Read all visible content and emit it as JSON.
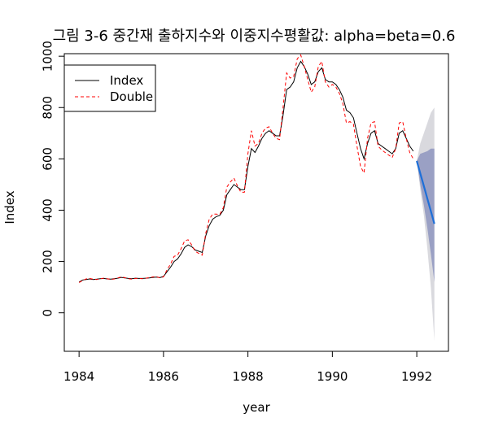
{
  "chart_data": {
    "type": "line",
    "title": "그림 3-6 중간재 출하지수와 이중지수평활값: alpha=beta=0.6",
    "xlabel": "year",
    "ylabel": "Index",
    "xlim": [
      1983.65,
      1992.75
    ],
    "ylim": [
      -150,
      1010
    ],
    "xticks": [
      1984,
      1986,
      1988,
      1990,
      1992
    ],
    "yticks": [
      0,
      200,
      400,
      600,
      800,
      1000
    ],
    "legend": {
      "position": "top-left",
      "entries": [
        "Index",
        "Double"
      ]
    },
    "colors": {
      "index": "#000000",
      "double": "#ff0000",
      "forecast": "#1e6fd8",
      "band80": "#9aa0c4",
      "band95": "#d9d9de"
    },
    "series": [
      {
        "name": "Index",
        "style": "solid",
        "x": [
          1984.0,
          1984.083,
          1984.167,
          1984.25,
          1984.333,
          1984.417,
          1984.5,
          1984.583,
          1984.667,
          1984.75,
          1984.833,
          1984.917,
          1985.0,
          1985.083,
          1985.167,
          1985.25,
          1985.333,
          1985.417,
          1985.5,
          1985.583,
          1985.667,
          1985.75,
          1985.833,
          1985.917,
          1986.0,
          1986.083,
          1986.167,
          1986.25,
          1986.333,
          1986.417,
          1986.5,
          1986.583,
          1986.667,
          1986.75,
          1986.833,
          1986.917,
          1987.0,
          1987.083,
          1987.167,
          1987.25,
          1987.333,
          1987.417,
          1987.5,
          1987.583,
          1987.667,
          1987.75,
          1987.833,
          1987.917,
          1988.0,
          1988.083,
          1988.167,
          1988.25,
          1988.333,
          1988.417,
          1988.5,
          1988.583,
          1988.667,
          1988.75,
          1988.833,
          1988.917,
          1989.0,
          1989.083,
          1989.167,
          1989.25,
          1989.333,
          1989.417,
          1989.5,
          1989.583,
          1989.667,
          1989.75,
          1989.833,
          1989.917,
          1990.0,
          1990.083,
          1990.167,
          1990.25,
          1990.333,
          1990.417,
          1990.5,
          1990.583,
          1990.667,
          1990.75,
          1990.833,
          1990.917,
          1991.0,
          1991.083,
          1991.167,
          1991.25,
          1991.333,
          1991.417,
          1991.5,
          1991.583,
          1991.667,
          1991.75,
          1991.833,
          1991.917
        ],
        "values": [
          120,
          128,
          130,
          132,
          130,
          131,
          133,
          134,
          132,
          131,
          133,
          135,
          138,
          136,
          134,
          133,
          135,
          134,
          134,
          135,
          136,
          138,
          139,
          137,
          142,
          160,
          178,
          200,
          210,
          230,
          255,
          265,
          258,
          245,
          240,
          235,
          300,
          340,
          365,
          375,
          380,
          400,
          460,
          480,
          500,
          490,
          480,
          480,
          570,
          640,
          625,
          650,
          680,
          700,
          710,
          700,
          690,
          690,
          770,
          870,
          880,
          900,
          955,
          980,
          960,
          930,
          890,
          900,
          940,
          955,
          910,
          900,
          900,
          890,
          870,
          840,
          790,
          780,
          760,
          700,
          640,
          600,
          660,
          700,
          710,
          660,
          650,
          640,
          630,
          620,
          640,
          700,
          710,
          680,
          650,
          630
        ]
      },
      {
        "name": "Double",
        "style": "dashed",
        "x": [
          1984.0,
          1984.083,
          1984.167,
          1984.25,
          1984.333,
          1984.417,
          1984.5,
          1984.583,
          1984.667,
          1984.75,
          1984.833,
          1984.917,
          1985.0,
          1985.083,
          1985.167,
          1985.25,
          1985.333,
          1985.417,
          1985.5,
          1985.583,
          1985.667,
          1985.75,
          1985.833,
          1985.917,
          1986.0,
          1986.083,
          1986.167,
          1986.25,
          1986.333,
          1986.417,
          1986.5,
          1986.583,
          1986.667,
          1986.75,
          1986.833,
          1986.917,
          1987.0,
          1987.083,
          1987.167,
          1987.25,
          1987.333,
          1987.417,
          1987.5,
          1987.583,
          1987.667,
          1987.75,
          1987.833,
          1987.917,
          1988.0,
          1988.083,
          1988.167,
          1988.25,
          1988.333,
          1988.417,
          1988.5,
          1988.583,
          1988.667,
          1988.75,
          1988.833,
          1988.917,
          1989.0,
          1989.083,
          1989.167,
          1989.25,
          1989.333,
          1989.417,
          1989.5,
          1989.583,
          1989.667,
          1989.75,
          1989.833,
          1989.917,
          1990.0,
          1990.083,
          1990.167,
          1990.25,
          1990.333,
          1990.417,
          1990.5,
          1990.583,
          1990.667,
          1990.75,
          1990.833,
          1990.917,
          1991.0,
          1991.083,
          1991.167,
          1991.25,
          1991.333,
          1991.417,
          1991.5,
          1991.583,
          1991.667,
          1991.75,
          1991.833,
          1991.917
        ],
        "values": [
          118,
          126,
          132,
          134,
          131,
          130,
          133,
          135,
          133,
          130,
          132,
          136,
          140,
          137,
          133,
          131,
          134,
          134,
          133,
          135,
          137,
          140,
          141,
          136,
          140,
          168,
          190,
          220,
          225,
          250,
          280,
          285,
          265,
          240,
          232,
          225,
          310,
          365,
          385,
          385,
          383,
          410,
          490,
          510,
          525,
          495,
          470,
          470,
          620,
          710,
          650,
          660,
          700,
          720,
          725,
          700,
          680,
          675,
          800,
          935,
          915,
          920,
          990,
          1005,
          960,
          910,
          860,
          880,
          960,
          980,
          900,
          880,
          890,
          880,
          855,
          815,
          740,
          745,
          735,
          650,
          570,
          545,
          680,
          740,
          745,
          650,
          635,
          625,
          615,
          605,
          640,
          740,
          745,
          680,
          625,
          600
        ]
      }
    ],
    "forecast": {
      "x": [
        1992.0,
        1992.083,
        1992.167,
        1992.25,
        1992.333,
        1992.417
      ],
      "mean": [
        592,
        543,
        494,
        445,
        396,
        347
      ],
      "lo80": [
        592,
        500,
        420,
        330,
        230,
        120
      ],
      "hi80": [
        592,
        620,
        625,
        630,
        640,
        640
      ],
      "lo95": [
        592,
        480,
        380,
        250,
        100,
        -110
      ],
      "hi95": [
        592,
        660,
        700,
        740,
        780,
        800
      ]
    }
  }
}
